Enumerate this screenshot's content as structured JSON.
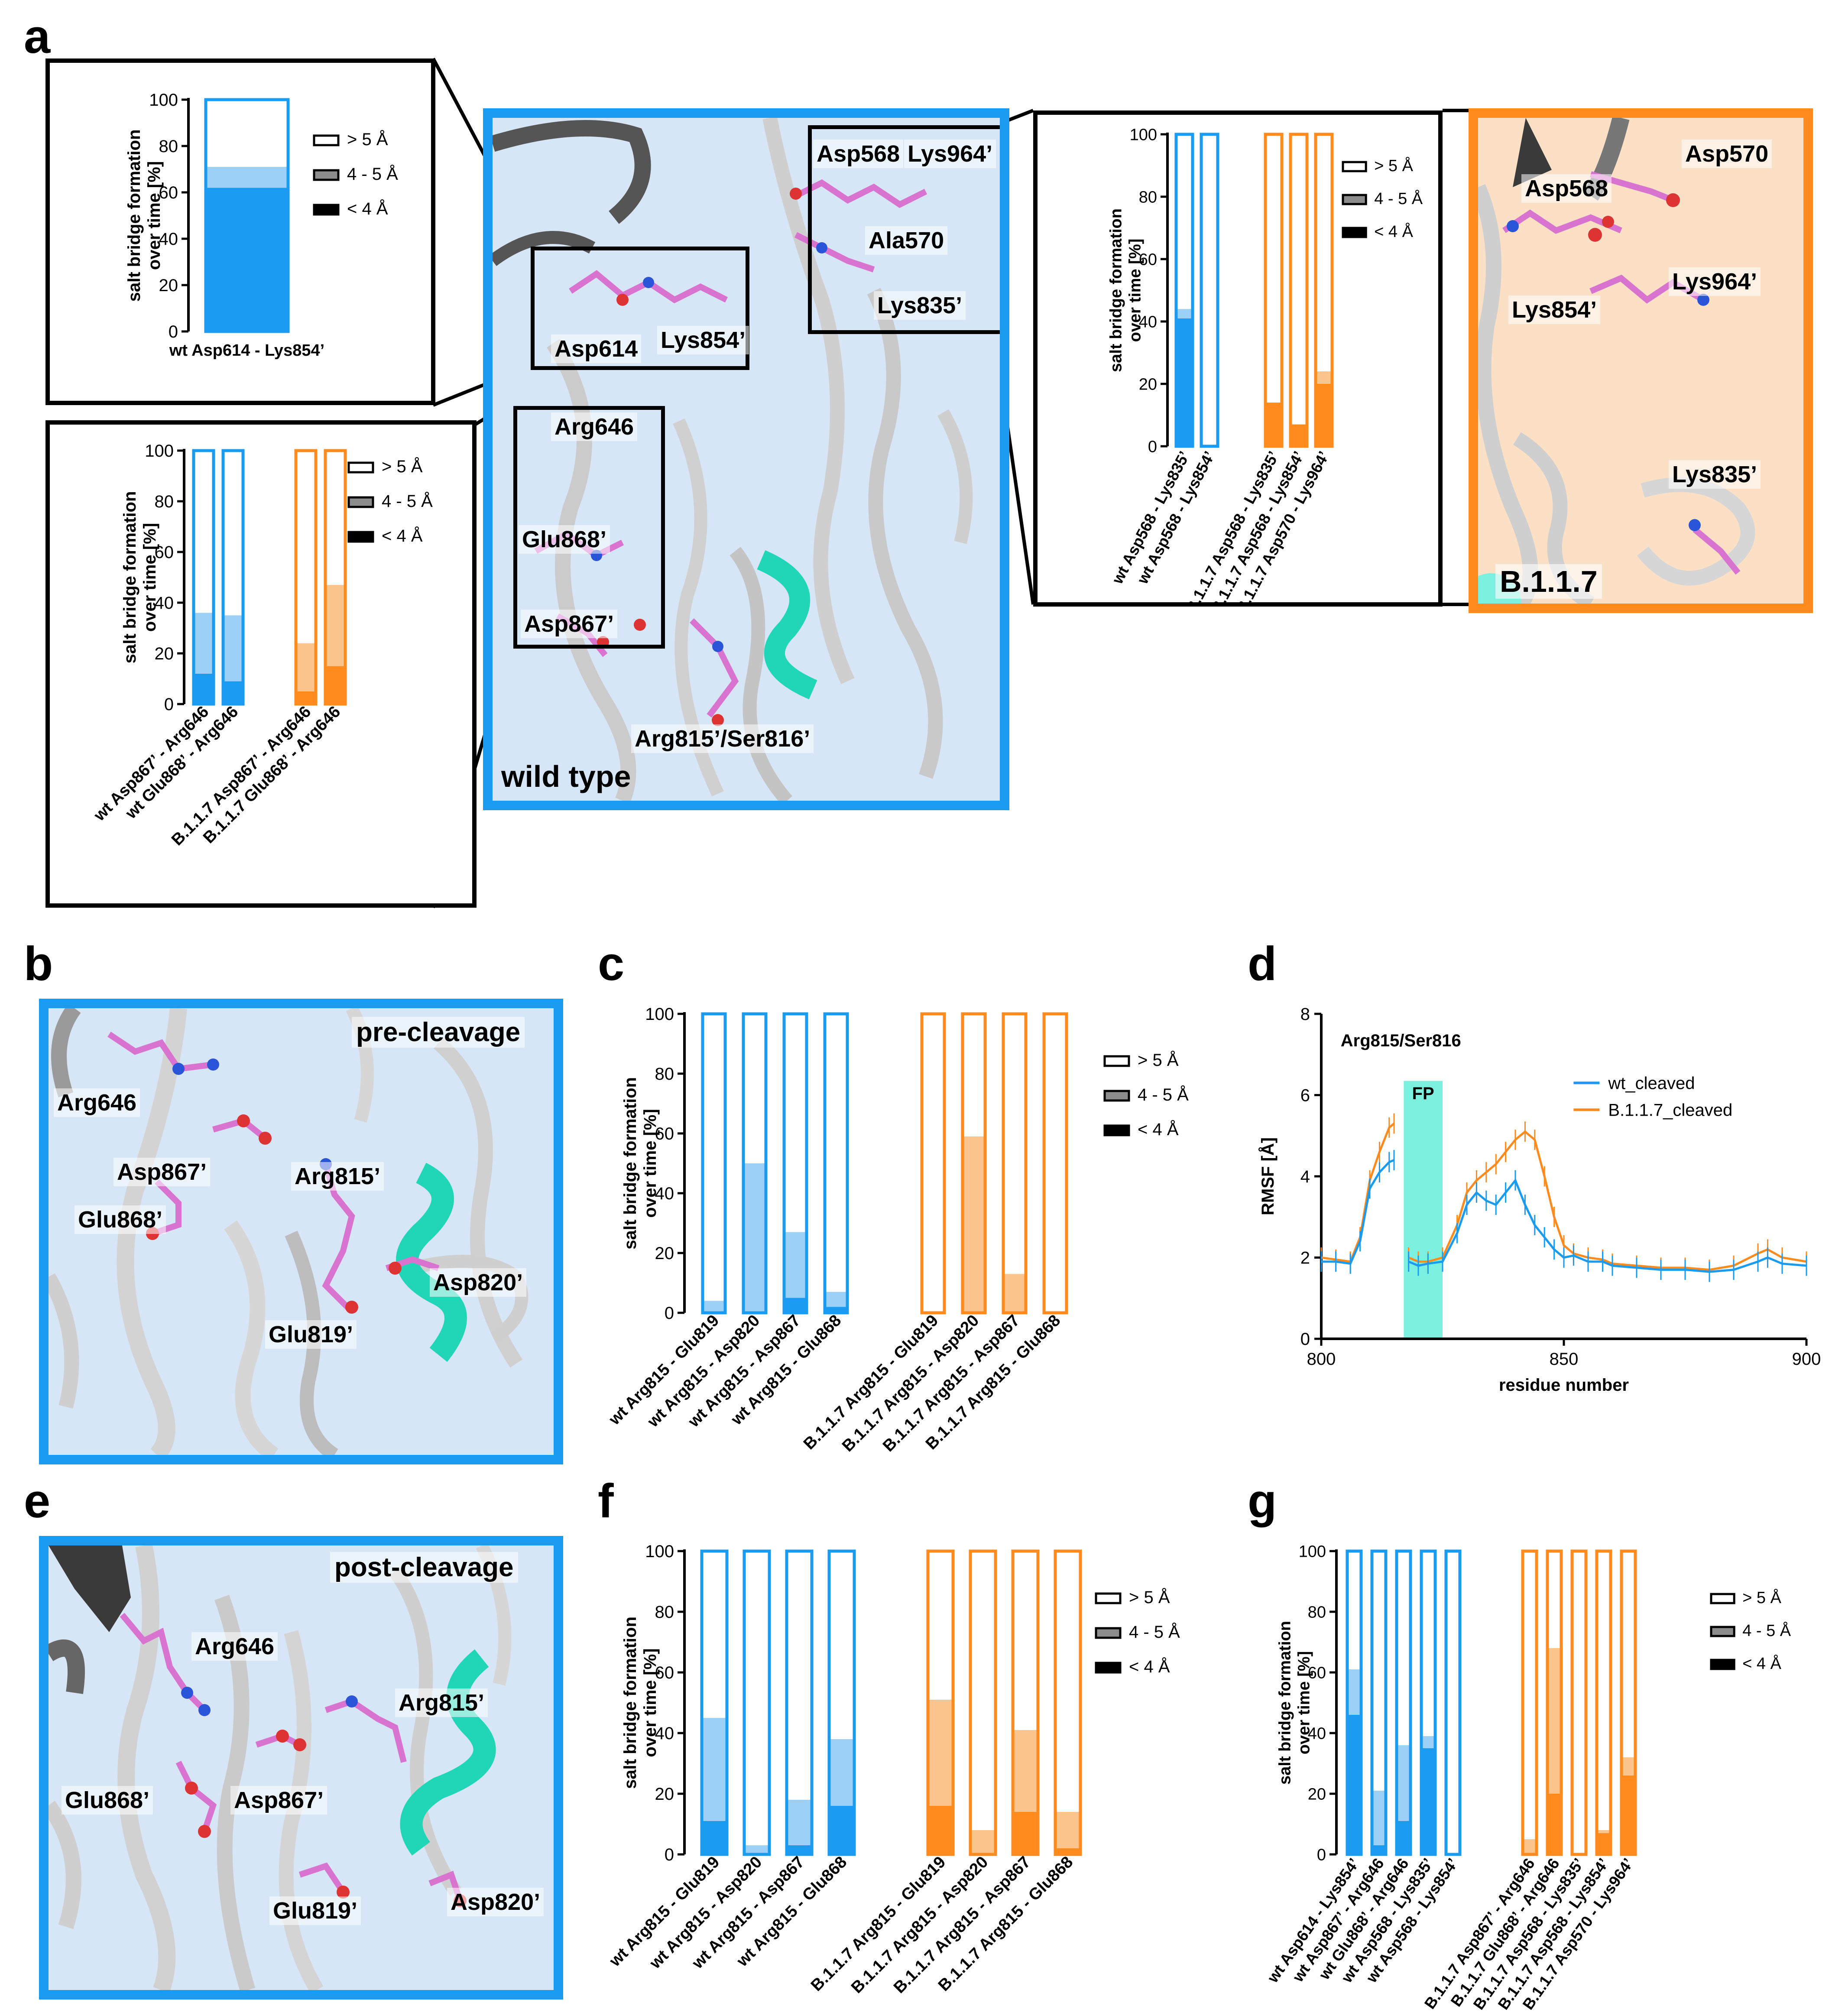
{
  "panels": {
    "a": "a",
    "b": "b",
    "c": "c",
    "d": "d",
    "e": "e",
    "f": "f",
    "g": "g"
  },
  "legend_labels": [
    "> 5 Å",
    "4 - 5 Å",
    "< 4 Å"
  ],
  "colors": {
    "wt": "#1a9bf0",
    "wt_light": "#9dd0f7",
    "b117": "#ff8a1e",
    "b117_light": "#fcc58e",
    "box": "#d6e6f7",
    "orange_box": "#fbe0c6",
    "fp": "#7cf0df"
  },
  "structures": {
    "wildtype": {
      "caption": "wild type",
      "labels": [
        "Asp568",
        "Lys964’",
        "Ala570",
        "Lys835’",
        "Asp614",
        "Lys854’",
        "Arg646",
        "Glu868’",
        "Asp867’",
        "Arg815’/Ser816’"
      ]
    },
    "b117": {
      "caption": "B.1.1.7",
      "labels": [
        "Asp570",
        "Asp568",
        "Lys964’",
        "Lys854’",
        "Lys835’"
      ]
    },
    "precleavage": {
      "caption": "pre-cleavage",
      "labels": [
        "Arg646",
        "Asp867’",
        "Arg815’",
        "Glu868’",
        "Asp820’",
        "Glu819’"
      ]
    },
    "postcleavage": {
      "caption": "post-cleavage",
      "labels": [
        "Arg646",
        "Arg815’",
        "Glu868’",
        "Asp867’",
        "Glu819’",
        "Asp820’"
      ]
    }
  },
  "chart_data": [
    {
      "id": "a1",
      "type": "bar",
      "stacked": true,
      "title": "",
      "ylabel": "salt bridge formation over time [%]",
      "ylim": [
        0,
        100
      ],
      "yticks": [
        0,
        20,
        40,
        60,
        80,
        100
      ],
      "categories": [
        "wt Asp614 - Lys854’"
      ],
      "groups": [
        "wt"
      ],
      "lt4": [
        62
      ],
      "d45": [
        9
      ],
      "gt5": [
        29
      ]
    },
    {
      "id": "a2",
      "type": "bar",
      "stacked": true,
      "ylabel": "salt bridge formation over time [%]",
      "ylim": [
        0,
        100
      ],
      "yticks": [
        0,
        20,
        40,
        60,
        80,
        100
      ],
      "categories": [
        "wt Asp867’ - Arg646",
        "wt Glu868’ - Arg646",
        "B.1.1.7 Asp867’ - Arg646",
        "B.1.1.7 Glu868’ - Arg646"
      ],
      "groups": [
        "wt",
        "wt",
        "b117",
        "b117"
      ],
      "lt4": [
        12,
        9,
        5,
        15
      ],
      "d45": [
        24,
        26,
        19,
        32
      ],
      "gt5": [
        64,
        65,
        76,
        53
      ]
    },
    {
      "id": "a3",
      "type": "bar",
      "stacked": true,
      "ylabel": "salt bridge formation over time [%]",
      "ylim": [
        0,
        100
      ],
      "yticks": [
        0,
        20,
        40,
        60,
        80,
        100
      ],
      "categories": [
        "wt Asp568 - Lys835’",
        "wt Asp568 - Lys854’",
        "B.1.1.7 Asp568 - Lys835’",
        "B.1.1.7 Asp568 - Lys854’",
        "B.1.1.7 Asp570 - Lys964’"
      ],
      "groups": [
        "wt",
        "wt",
        "b117",
        "b117",
        "b117"
      ],
      "lt4": [
        41,
        0,
        14,
        7,
        20
      ],
      "d45": [
        3,
        0,
        0,
        0,
        4
      ],
      "gt5": [
        56,
        100,
        86,
        93,
        76
      ]
    },
    {
      "id": "c",
      "type": "bar",
      "stacked": true,
      "ylabel": "salt bridge formation over time [%]",
      "ylim": [
        0,
        100
      ],
      "yticks": [
        0,
        20,
        40,
        60,
        80,
        100
      ],
      "categories": [
        "wt Arg815 - Glu819",
        "wt Arg815 - Asp820",
        "wt Arg815 - Asp867",
        "wt Arg815 - Glu868",
        "B.1.1.7 Arg815 - Glu819",
        "B.1.1.7 Arg815 - Asp820",
        "B.1.1.7 Arg815 - Asp867",
        "B.1.1.7 Arg815 - Glu868"
      ],
      "groups": [
        "wt",
        "wt",
        "wt",
        "wt",
        "b117",
        "b117",
        "b117",
        "b117"
      ],
      "lt4": [
        0,
        0,
        5,
        2,
        0,
        0,
        0,
        0
      ],
      "d45": [
        4,
        50,
        22,
        5,
        0,
        59,
        13,
        0
      ],
      "gt5": [
        96,
        50,
        73,
        93,
        100,
        41,
        87,
        100
      ]
    },
    {
      "id": "d",
      "type": "line",
      "xlabel": "residue number",
      "ylabel": "RMSF [Å]",
      "xlim": [
        800,
        900
      ],
      "ylim": [
        0,
        8
      ],
      "xticks": [
        800,
        850,
        900
      ],
      "yticks": [
        0,
        2,
        4,
        6,
        8
      ],
      "annotation": "Arg815/Ser816",
      "fp_label": "FP",
      "fp_range": [
        817,
        825
      ],
      "series": [
        {
          "name": "wt_cleaved",
          "x": [
            800,
            803,
            806,
            808,
            810,
            812,
            814,
            815,
            816,
            818,
            820,
            822,
            825,
            828,
            830,
            832,
            834,
            836,
            838,
            840,
            842,
            844,
            846,
            848,
            850,
            852,
            855,
            858,
            860,
            865,
            870,
            875,
            880,
            885,
            890,
            892,
            895,
            900
          ],
          "y": [
            1.9,
            1.9,
            1.85,
            2.4,
            3.7,
            4.1,
            4.35,
            4.4,
            null,
            1.9,
            1.8,
            1.85,
            1.9,
            2.6,
            3.3,
            3.6,
            3.4,
            3.3,
            3.6,
            3.9,
            3.3,
            2.8,
            2.5,
            2.2,
            2.0,
            2.05,
            1.9,
            1.9,
            1.8,
            1.75,
            1.7,
            1.7,
            1.65,
            1.7,
            1.9,
            2.0,
            1.85,
            1.8
          ]
        },
        {
          "name": "B.1.1.7_cleaved",
          "x": [
            800,
            803,
            806,
            808,
            810,
            812,
            814,
            815,
            816,
            818,
            820,
            822,
            825,
            828,
            830,
            832,
            834,
            836,
            838,
            840,
            842,
            844,
            846,
            848,
            850,
            852,
            855,
            858,
            860,
            865,
            870,
            875,
            880,
            885,
            890,
            892,
            895,
            900
          ],
          "y": [
            2.0,
            1.95,
            1.9,
            2.5,
            3.9,
            4.6,
            5.2,
            5.3,
            null,
            2.0,
            1.9,
            1.9,
            2.0,
            2.8,
            3.6,
            3.9,
            4.1,
            4.3,
            4.6,
            4.9,
            5.1,
            4.9,
            4.0,
            3.0,
            2.3,
            2.1,
            2.0,
            1.95,
            1.85,
            1.8,
            1.75,
            1.75,
            1.7,
            1.8,
            2.1,
            2.2,
            2.0,
            1.9
          ]
        }
      ]
    },
    {
      "id": "f",
      "type": "bar",
      "stacked": true,
      "ylabel": "salt bridge formation over time [%]",
      "ylim": [
        0,
        100
      ],
      "yticks": [
        0,
        20,
        40,
        60,
        80,
        100
      ],
      "categories": [
        "wt Arg815 - Glu819",
        "wt Arg815 - Asp820",
        "wt Arg815 - Asp867",
        "wt Arg815 - Glu868",
        "B.1.1.7 Arg815 - Glu819",
        "B.1.1.7 Arg815 - Asp820",
        "B.1.1.7 Arg815 - Asp867",
        "B.1.1.7 Arg815 - Glu868"
      ],
      "groups": [
        "wt",
        "wt",
        "wt",
        "wt",
        "b117",
        "b117",
        "b117",
        "b117"
      ],
      "lt4": [
        11,
        0,
        3,
        16,
        16,
        0,
        14,
        2
      ],
      "d45": [
        34,
        3,
        15,
        22,
        35,
        8,
        27,
        12
      ],
      "gt5": [
        55,
        97,
        82,
        62,
        49,
        92,
        59,
        86
      ]
    },
    {
      "id": "g",
      "type": "bar",
      "stacked": true,
      "ylabel": "salt bridge formation over time [%]",
      "ylim": [
        0,
        100
      ],
      "yticks": [
        0,
        20,
        40,
        60,
        80,
        100
      ],
      "categories": [
        "wt Asp614 - Lys854’",
        "wt Asp867’ - Arg646",
        "wt Glu868’ - Arg646",
        "wt Asp568 - Lys835’",
        "wt Asp568 - Lys854’",
        "B.1.1.7 Asp867’ - Arg646",
        "B.1.1.7 Glu868’ - Arg646",
        "B.1.1.7 Asp568 - Lys835’",
        "B.1.1.7 Asp568 - Lys854’",
        "B.1.1.7 Asp570 - Lys964’"
      ],
      "groups": [
        "wt",
        "wt",
        "wt",
        "wt",
        "wt",
        "b117",
        "b117",
        "b117",
        "b117",
        "b117"
      ],
      "lt4": [
        46,
        3,
        11,
        35,
        0,
        0,
        20,
        0,
        7,
        26
      ],
      "d45": [
        15,
        18,
        25,
        4,
        0,
        5,
        48,
        0,
        1,
        6
      ],
      "gt5": [
        39,
        79,
        64,
        61,
        100,
        95,
        32,
        100,
        92,
        68
      ]
    }
  ]
}
